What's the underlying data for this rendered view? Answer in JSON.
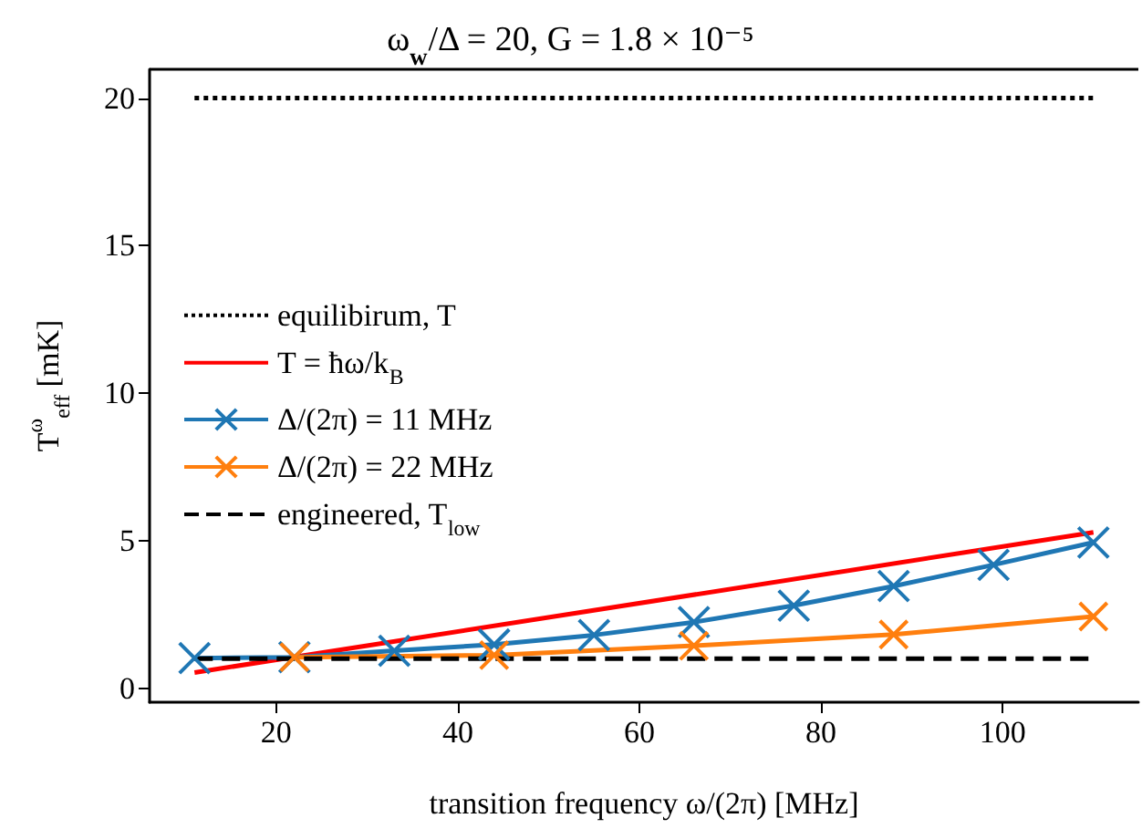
{
  "chart_data": {
    "type": "line",
    "title": "ω$_{w}$/Δ = 20, G = 1.8 × 10⁻⁵",
    "xlabel": "transition frequency ω/(2π) [MHz]",
    "ylabel": "T$^{ω}$$_{eff}$ [mK]",
    "xlim": [
      6.05,
      114.95
    ],
    "ylim": [
      -0.475,
      20.975
    ],
    "xticks": [
      20,
      40,
      60,
      80,
      100
    ],
    "yticks": [
      0,
      5,
      10,
      15,
      20
    ],
    "grid": false,
    "legend": "center left",
    "series": [
      {
        "name": "equilibirum, T",
        "color": "#000000",
        "line_style": "dotted",
        "marker": "none",
        "x": [
          11,
          110
        ],
        "values": [
          20,
          20
        ]
      },
      {
        "name": "T = ħω/k$_{B}$",
        "color": "#ff0000",
        "line_style": "solid",
        "marker": "none",
        "x": [
          11,
          110
        ],
        "values": [
          0.53,
          5.28
        ]
      },
      {
        "name": "Δ/(2π) = 11 MHz",
        "color": "#1f77b4",
        "line_style": "solid",
        "marker": "cross",
        "x": [
          11,
          22,
          33,
          44,
          55,
          66,
          77,
          88,
          99,
          110
        ],
        "values": [
          1.02,
          1.05,
          1.27,
          1.48,
          1.8,
          2.24,
          2.8,
          3.46,
          4.18,
          4.94
        ]
      },
      {
        "name": "Δ/(2π) = 22 MHz",
        "color": "#ff7f0e",
        "line_style": "solid",
        "marker": "cross",
        "x": [
          22,
          44,
          66,
          88,
          110
        ],
        "values": [
          1.05,
          1.12,
          1.44,
          1.82,
          2.43
        ]
      },
      {
        "name": "engineered, T$_{low}$",
        "color": "#000000",
        "line_style": "dashed",
        "marker": "none",
        "x": [
          11,
          110
        ],
        "values": [
          1,
          1
        ]
      }
    ]
  }
}
